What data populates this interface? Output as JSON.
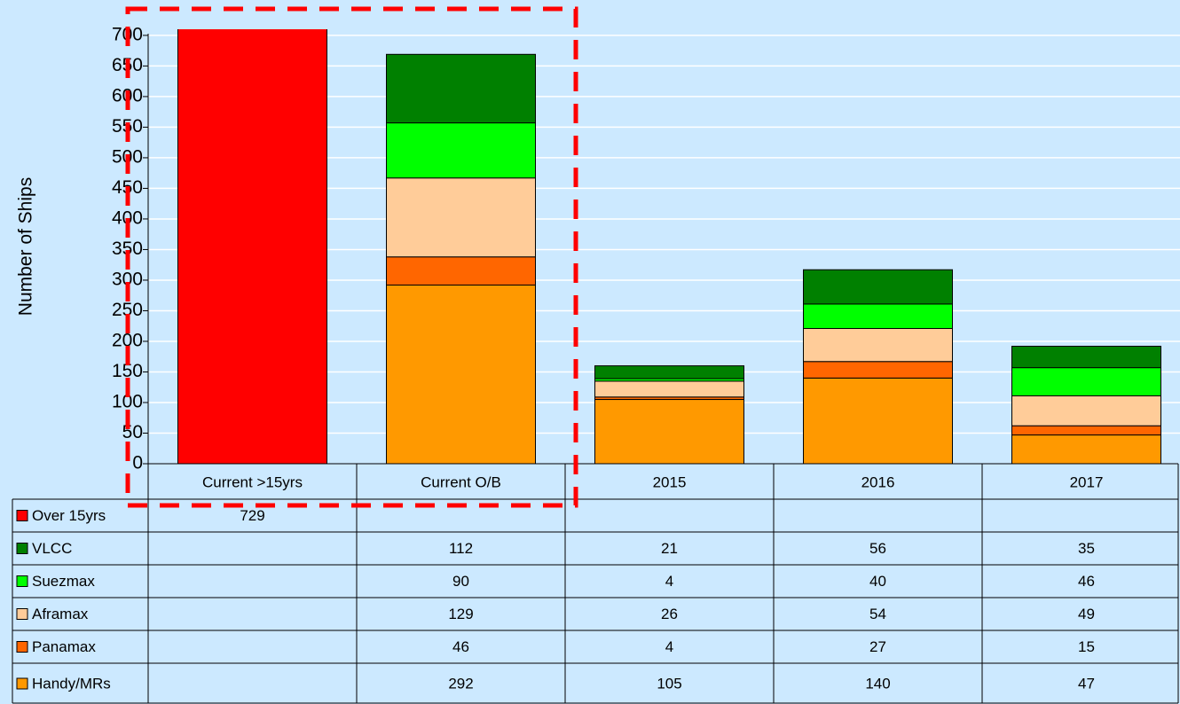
{
  "chart_data": {
    "type": "bar",
    "stacked": true,
    "y_label": "Number of Ships",
    "categories": [
      "Current >15yrs",
      "Current O/B",
      "2015",
      "2016",
      "2017"
    ],
    "series": [
      {
        "name": "Over 15yrs",
        "color": "#ff0000",
        "values": [
          729,
          null,
          null,
          null,
          null
        ]
      },
      {
        "name": "VLCC",
        "color": "#008000",
        "values": [
          null,
          112,
          21,
          56,
          35
        ]
      },
      {
        "name": "Suezmax",
        "color": "#00ff00",
        "values": [
          null,
          90,
          4,
          40,
          46
        ]
      },
      {
        "name": "Aframax",
        "color": "#ffcc99",
        "values": [
          null,
          129,
          26,
          54,
          49
        ]
      },
      {
        "name": "Panamax",
        "color": "#ff6600",
        "values": [
          null,
          46,
          4,
          27,
          15
        ]
      },
      {
        "name": "Handy/MRs",
        "color": "#ff9900",
        "values": [
          null,
          292,
          105,
          140,
          47
        ]
      }
    ],
    "ylim": [
      0,
      710
    ],
    "yticks": [
      0,
      50,
      100,
      150,
      200,
      250,
      300,
      350,
      400,
      450,
      500,
      550,
      600,
      650,
      700
    ],
    "grid": true
  }
}
